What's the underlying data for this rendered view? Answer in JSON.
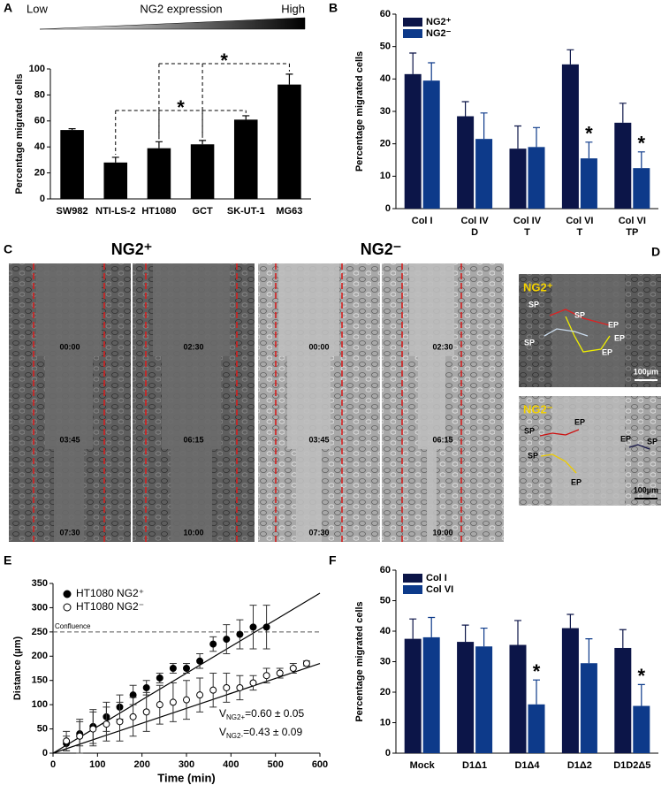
{
  "chart_data": [
    {
      "panel": "A",
      "type": "bar",
      "ylabel": "Percentage migrated cells",
      "categories": [
        "SW982",
        "NTI-LS-2",
        "HT1080",
        "GCT",
        "SK-UT-1",
        "MG63"
      ],
      "values": [
        53,
        28,
        39,
        42,
        61,
        88
      ],
      "errors": [
        1,
        4,
        5,
        3,
        3,
        8
      ],
      "color": "#000000",
      "ylim": [
        0,
        100
      ],
      "yticks": [
        0,
        20,
        40,
        60,
        80,
        100
      ],
      "gradient": {
        "low": "Low",
        "label": "NG2 expression",
        "high": "High"
      },
      "annotations": [
        "*",
        "*"
      ]
    },
    {
      "panel": "B",
      "type": "grouped_bar",
      "ylabel": "Percentage migrated cells",
      "categories": [
        [
          "Col I"
        ],
        [
          "Col IV",
          "D"
        ],
        [
          "Col IV",
          "T"
        ],
        [
          "Col VI",
          "T"
        ],
        [
          "Col VI",
          "TP"
        ]
      ],
      "series": [
        {
          "name": "NG2⁺",
          "color": "#0c1548",
          "values": [
            41.5,
            28.5,
            18.5,
            44.5,
            26.5
          ],
          "errors": [
            6.5,
            4.5,
            7,
            4.5,
            6
          ]
        },
        {
          "name": "NG2⁻",
          "color": "#0d3a8a",
          "values": [
            39.5,
            21.5,
            19,
            15.5,
            12.5
          ],
          "errors": [
            5.5,
            8,
            6,
            5,
            5
          ]
        }
      ],
      "ylim": [
        0,
        60
      ],
      "yticks": [
        0,
        10,
        20,
        30,
        40,
        50,
        60
      ],
      "legend": "upper left",
      "annotations": [
        "*",
        "*"
      ]
    },
    {
      "panel": "E",
      "type": "scatter",
      "xlabel": "Time (min)",
      "ylabel": "Distance (µm)",
      "series": [
        {
          "name": "HT1080 NG2⁺",
          "color": "#000000",
          "marker_fill": "#000000",
          "x": [
            30,
            60,
            90,
            120,
            150,
            180,
            210,
            240,
            270,
            300,
            330,
            360,
            390,
            420,
            450,
            480
          ],
          "values": [
            20,
            40,
            55,
            75,
            95,
            120,
            135,
            155,
            175,
            175,
            190,
            225,
            235,
            245,
            260,
            260
          ],
          "errors": [
            15,
            25,
            35,
            30,
            25,
            20,
            15,
            10,
            10,
            10,
            15,
            15,
            30,
            30,
            45,
            45
          ],
          "fit": {
            "x": [
              0,
              600
            ],
            "y": [
              0,
              330
            ]
          }
        },
        {
          "name": "HT1080 NG2⁻",
          "color": "#000000",
          "marker_fill": "#ffffff",
          "x": [
            30,
            60,
            90,
            120,
            150,
            180,
            210,
            240,
            270,
            300,
            330,
            360,
            390,
            420,
            450,
            480,
            510,
            540,
            570
          ],
          "values": [
            25,
            35,
            50,
            60,
            65,
            75,
            85,
            100,
            105,
            110,
            120,
            130,
            135,
            135,
            145,
            160,
            165,
            175,
            185
          ],
          "errors": [
            20,
            35,
            35,
            35,
            40,
            40,
            40,
            40,
            40,
            40,
            35,
            35,
            30,
            25,
            15,
            15,
            10,
            10,
            5
          ],
          "fit": {
            "x": [
              0,
              600
            ],
            "y": [
              0,
              185
            ]
          }
        }
      ],
      "xlim": [
        0,
        600
      ],
      "xticks": [
        0,
        100,
        200,
        300,
        400,
        500,
        600
      ],
      "ylim": [
        0,
        350
      ],
      "yticks": [
        0,
        50,
        100,
        150,
        200,
        250,
        300,
        350
      ],
      "reference_line": {
        "y": 250,
        "label": "Confluence"
      },
      "legend": "upper left",
      "annotations": [
        {
          "symbol": "V",
          "subscript": "NG2+",
          "text": "=0.60 ± 0.05"
        },
        {
          "symbol": "V",
          "subscript": "NG2-",
          "text": "=0.43 ± 0.09"
        }
      ]
    },
    {
      "panel": "F",
      "type": "grouped_bar",
      "ylabel": "Percentage migrated cells",
      "categories": [
        "Mock",
        "D1Δ1",
        "D1Δ4",
        "D1Δ2",
        "D1D2Δ5"
      ],
      "series": [
        {
          "name": "Col I",
          "color": "#0c1548",
          "values": [
            37.5,
            36.5,
            35.5,
            41,
            34.5
          ],
          "errors": [
            6.5,
            5.5,
            8,
            4.5,
            6
          ]
        },
        {
          "name": "Col VI",
          "color": "#0d3a8a",
          "values": [
            38,
            35,
            16,
            29.5,
            15.5
          ],
          "errors": [
            6.5,
            6,
            8,
            8,
            7
          ]
        }
      ],
      "ylim": [
        0,
        60
      ],
      "yticks": [
        0,
        10,
        20,
        30,
        40,
        50,
        60
      ],
      "legend": "upper left",
      "annotations": [
        "*",
        "*"
      ]
    }
  ],
  "panel_c": {
    "panel": "C",
    "groups": [
      {
        "title": "NG2⁺",
        "times": [
          "00:00",
          "02:30",
          "03:45",
          "06:15",
          "07:30",
          "10:00"
        ]
      },
      {
        "title": "NG2⁻",
        "times": [
          "00:00",
          "02:30",
          "03:45",
          "06:15",
          "07:30",
          "10:00"
        ]
      }
    ]
  },
  "panel_d": {
    "panel": "D",
    "images": [
      {
        "title": "NG2⁺",
        "labels": [
          "SP",
          "SP",
          "SP",
          "EP",
          "EP",
          "EP"
        ],
        "scale": "100µm"
      },
      {
        "title": "NG2⁻",
        "labels": [
          "SP",
          "EP",
          "SP",
          "EP",
          "EP",
          "SP"
        ],
        "scale": "100µm"
      }
    ]
  }
}
